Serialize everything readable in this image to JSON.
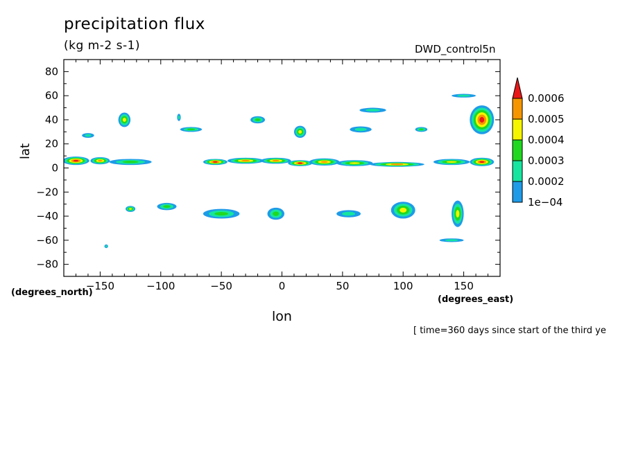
{
  "chart_data": {
    "type": "heatmap",
    "title": "precipitation flux",
    "units": "(kg m-2 s-1)",
    "dataset": "DWD_control5n",
    "xlabel": "lon",
    "ylabel": "lat",
    "x_units": "(degrees_east)",
    "y_units": "(degrees_north)",
    "time_note": "[ time=360 days since start of the third ye",
    "xlim": [
      -180,
      180
    ],
    "ylim": [
      -90,
      90
    ],
    "x_ticks": [
      -150,
      -100,
      -50,
      0,
      50,
      100,
      150
    ],
    "y_ticks": [
      80,
      60,
      40,
      20,
      0,
      -20,
      -40,
      -60,
      -80
    ],
    "colorbar": {
      "levels": [
        "1e-04",
        "0.0002",
        "0.0003",
        "0.0004",
        "0.0005",
        "0.0006"
      ],
      "colors": [
        "#1e9be8",
        "#16e5a0",
        "#20d820",
        "#f5f500",
        "#f59500",
        "#e81818"
      ]
    },
    "regions": [
      {
        "lon": -170,
        "lat": 6,
        "w": 22,
        "h": 7,
        "level": 5
      },
      {
        "lon": -150,
        "lat": 6,
        "w": 16,
        "h": 6,
        "level": 4
      },
      {
        "lon": -125,
        "lat": 5,
        "w": 35,
        "h": 5,
        "level": 2
      },
      {
        "lon": -55,
        "lat": 5,
        "w": 20,
        "h": 5,
        "level": 5
      },
      {
        "lon": -30,
        "lat": 6,
        "w": 30,
        "h": 5,
        "level": 4
      },
      {
        "lon": -5,
        "lat": 6,
        "w": 25,
        "h": 5,
        "level": 4
      },
      {
        "lon": 15,
        "lat": 4,
        "w": 20,
        "h": 5,
        "level": 5
      },
      {
        "lon": 35,
        "lat": 5,
        "w": 25,
        "h": 6,
        "level": 4
      },
      {
        "lon": 60,
        "lat": 4,
        "w": 30,
        "h": 5,
        "level": 3
      },
      {
        "lon": 95,
        "lat": 3,
        "w": 45,
        "h": 4,
        "level": 4
      },
      {
        "lon": 140,
        "lat": 5,
        "w": 30,
        "h": 5,
        "level": 3
      },
      {
        "lon": 165,
        "lat": 5,
        "w": 20,
        "h": 7,
        "level": 5
      },
      {
        "lon": -130,
        "lat": 40,
        "w": 10,
        "h": 12,
        "level": 3
      },
      {
        "lon": -85,
        "lat": 42,
        "w": 3,
        "h": 6,
        "level": 1
      },
      {
        "lon": -75,
        "lat": 32,
        "w": 18,
        "h": 4,
        "level": 2
      },
      {
        "lon": -20,
        "lat": 40,
        "w": 12,
        "h": 6,
        "level": 2
      },
      {
        "lon": 15,
        "lat": 30,
        "w": 10,
        "h": 10,
        "level": 3
      },
      {
        "lon": 65,
        "lat": 32,
        "w": 18,
        "h": 5,
        "level": 1
      },
      {
        "lon": 75,
        "lat": 48,
        "w": 22,
        "h": 4,
        "level": 1
      },
      {
        "lon": 115,
        "lat": 32,
        "w": 10,
        "h": 4,
        "level": 2
      },
      {
        "lon": 165,
        "lat": 40,
        "w": 20,
        "h": 24,
        "level": 5
      },
      {
        "lon": 150,
        "lat": 60,
        "w": 20,
        "h": 3,
        "level": 1
      },
      {
        "lon": -160,
        "lat": 27,
        "w": 10,
        "h": 4,
        "level": 1
      },
      {
        "lon": -125,
        "lat": -34,
        "w": 8,
        "h": 5,
        "level": 3
      },
      {
        "lon": -95,
        "lat": -32,
        "w": 16,
        "h": 6,
        "level": 2
      },
      {
        "lon": -50,
        "lat": -38,
        "w": 30,
        "h": 8,
        "level": 2
      },
      {
        "lon": -5,
        "lat": -38,
        "w": 14,
        "h": 10,
        "level": 2
      },
      {
        "lon": 55,
        "lat": -38,
        "w": 20,
        "h": 6,
        "level": 1
      },
      {
        "lon": 100,
        "lat": -35,
        "w": 20,
        "h": 14,
        "level": 3
      },
      {
        "lon": 145,
        "lat": -38,
        "w": 10,
        "h": 22,
        "level": 3
      },
      {
        "lon": 140,
        "lat": -60,
        "w": 20,
        "h": 3,
        "level": 1
      },
      {
        "lon": -145,
        "lat": -65,
        "w": 3,
        "h": 3,
        "level": 1
      }
    ]
  }
}
